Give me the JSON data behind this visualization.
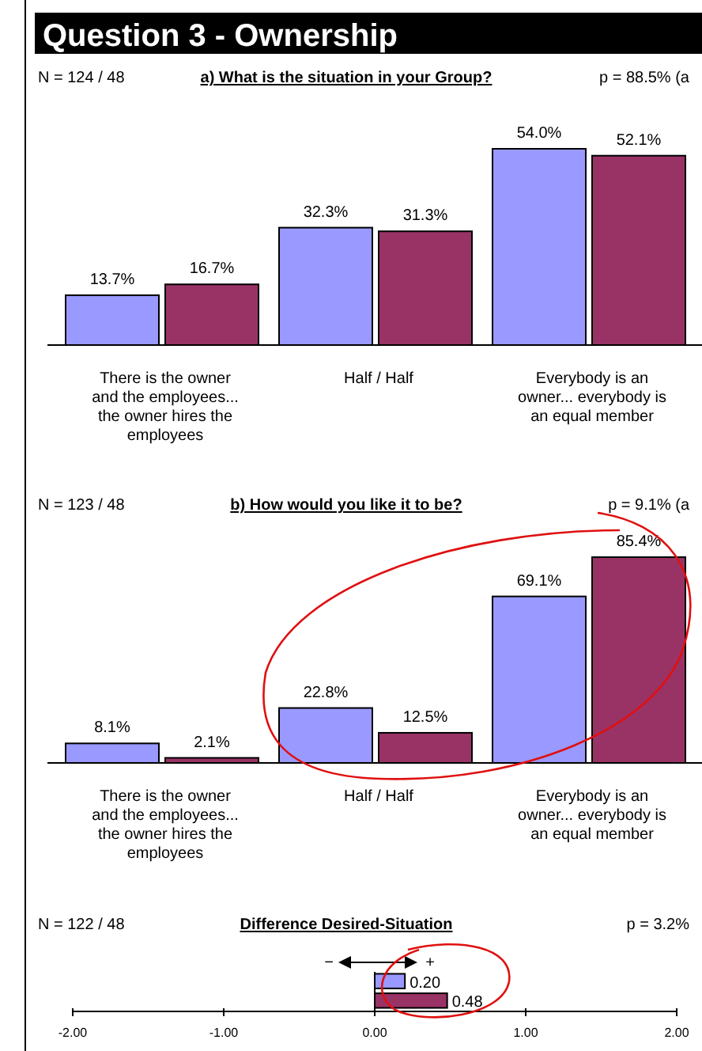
{
  "chart_data": [
    {
      "type": "bar",
      "title": "Question 3 - Ownership",
      "subtitle": "a) What is the situation in your Group?",
      "annotations": [
        "N = 124 / 48",
        "p = 88.5% (a"
      ],
      "categories": [
        "There is the owner and the employees... the owner hires the employees",
        "Half / Half",
        "Everybody is an owner... everybody is an equal member"
      ],
      "series": [
        {
          "color": "#9999ff",
          "values": [
            13.7,
            32.3,
            54.0
          ],
          "value_labels": [
            "13.7%",
            "32.3%",
            "54.0%"
          ]
        },
        {
          "color": "#993366",
          "values": [
            16.7,
            31.3,
            52.1
          ],
          "value_labels": [
            "16.7%",
            "31.3%",
            "52.1%"
          ]
        }
      ]
    },
    {
      "type": "bar",
      "title": "b) How would you like it to be?",
      "annotations": [
        "N = 123 / 48",
        "p = 9.1% (a"
      ],
      "categories": [
        "There is the owner and the employees... the owner hires the employees",
        "Half / Half",
        "Everybody is an owner... everybody is an equal member"
      ],
      "series": [
        {
          "color": "#9999ff",
          "values": [
            8.1,
            22.8,
            69.1
          ],
          "value_labels": [
            "8.1%",
            "22.8%",
            "69.1%"
          ]
        },
        {
          "color": "#993366",
          "values": [
            2.1,
            12.5,
            85.4
          ],
          "value_labels": [
            "2.1%",
            "12.5%",
            "85.4%"
          ]
        }
      ]
    },
    {
      "type": "bar",
      "orientation": "horizontal",
      "title": "Difference Desired-Situation",
      "annotations": [
        "N = 122 / 48",
        "p = 3.2%",
        "−",
        "+"
      ],
      "categories": [
        null,
        null
      ],
      "values": [
        0.2,
        0.48
      ],
      "colors": [
        "#9999ff",
        "#993366"
      ],
      "value_labels": [
        "0.20",
        "0.48"
      ],
      "xlim": [
        -2,
        2
      ],
      "xticks": [
        {
          "value": -2,
          "label": "-2.00"
        },
        {
          "value": -1,
          "label": "-1.00"
        },
        {
          "value": 0,
          "label": "0.00"
        },
        {
          "value": 1,
          "label": "1.00"
        },
        {
          "value": 2,
          "label": "2.00"
        }
      ]
    }
  ]
}
